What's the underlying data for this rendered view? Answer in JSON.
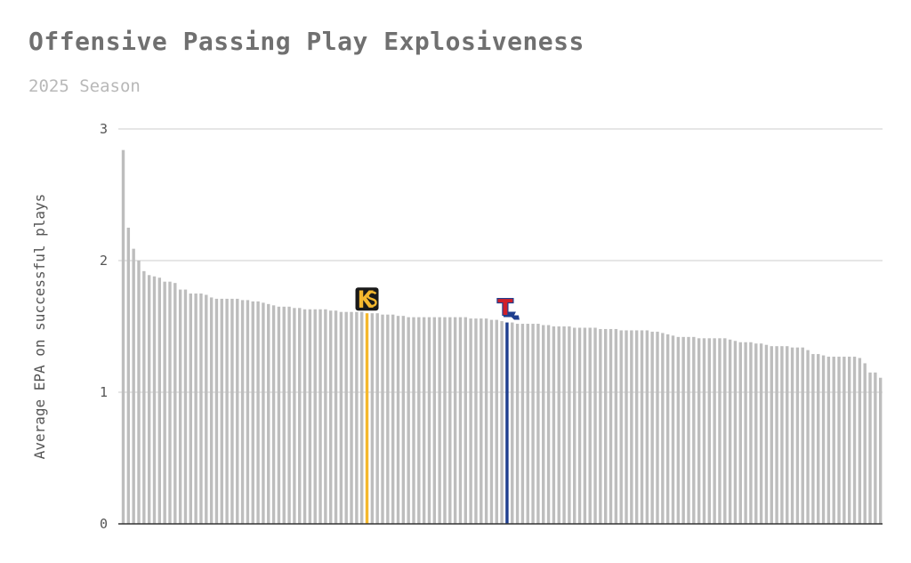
{
  "chart_data": {
    "type": "bar",
    "title": "Offensive Passing Play Explosiveness",
    "subtitle": "2025 Season",
    "xlabel": "",
    "ylabel": "Average EPA on successful plays",
    "ylim": [
      0,
      3
    ],
    "yticks": [
      "0",
      "1",
      "2",
      "3"
    ],
    "grid": true,
    "legend": "none",
    "colors": {
      "bar": "#bdbdbd",
      "grid": "#d6d6d6",
      "axis": "#333333"
    },
    "values": [
      2.84,
      2.25,
      2.09,
      2.0,
      1.92,
      1.89,
      1.88,
      1.87,
      1.84,
      1.84,
      1.83,
      1.78,
      1.78,
      1.75,
      1.75,
      1.75,
      1.74,
      1.72,
      1.71,
      1.71,
      1.71,
      1.71,
      1.71,
      1.7,
      1.7,
      1.69,
      1.69,
      1.68,
      1.67,
      1.66,
      1.65,
      1.65,
      1.65,
      1.64,
      1.64,
      1.63,
      1.63,
      1.63,
      1.63,
      1.63,
      1.62,
      1.62,
      1.61,
      1.61,
      1.61,
      1.61,
      1.61,
      1.6,
      1.6,
      1.6,
      1.59,
      1.59,
      1.59,
      1.58,
      1.58,
      1.57,
      1.57,
      1.57,
      1.57,
      1.57,
      1.57,
      1.57,
      1.57,
      1.57,
      1.57,
      1.57,
      1.57,
      1.56,
      1.56,
      1.56,
      1.56,
      1.55,
      1.55,
      1.54,
      1.53,
      1.53,
      1.52,
      1.52,
      1.52,
      1.52,
      1.52,
      1.51,
      1.51,
      1.5,
      1.5,
      1.5,
      1.5,
      1.49,
      1.49,
      1.49,
      1.49,
      1.49,
      1.48,
      1.48,
      1.48,
      1.48,
      1.47,
      1.47,
      1.47,
      1.47,
      1.47,
      1.47,
      1.46,
      1.46,
      1.45,
      1.44,
      1.43,
      1.42,
      1.42,
      1.42,
      1.42,
      1.41,
      1.41,
      1.41,
      1.41,
      1.41,
      1.41,
      1.4,
      1.39,
      1.38,
      1.38,
      1.38,
      1.37,
      1.37,
      1.36,
      1.35,
      1.35,
      1.35,
      1.35,
      1.34,
      1.34,
      1.34,
      1.32,
      1.29,
      1.29,
      1.28,
      1.27,
      1.27,
      1.27,
      1.27,
      1.27,
      1.27,
      1.26,
      1.22,
      1.15,
      1.15,
      1.11
    ],
    "highlights": [
      {
        "index": 47,
        "color": "#f5b82e",
        "logo": "ks-logo-icon"
      },
      {
        "index": 74,
        "color": "#1f3f8f",
        "logo": "t-louisiana-logo-icon"
      }
    ]
  }
}
